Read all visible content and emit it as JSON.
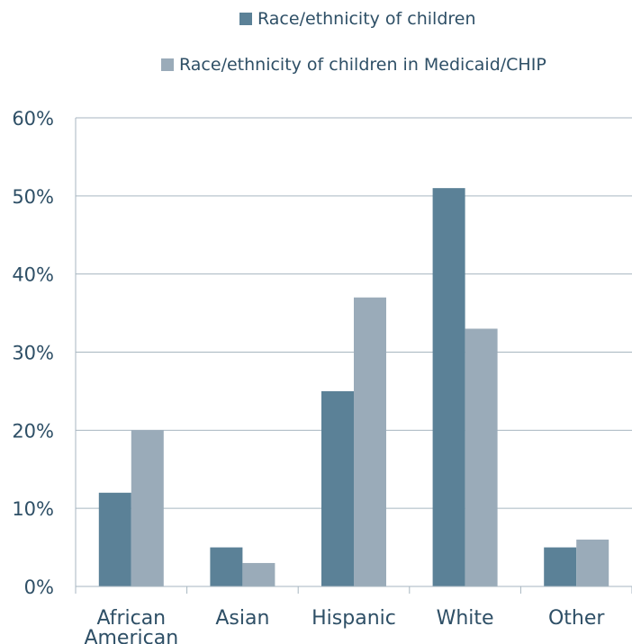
{
  "chart_data": {
    "type": "bar",
    "categories": [
      "African American",
      "Asian",
      "Hispanic",
      "White",
      "Other"
    ],
    "category_labels": [
      [
        "African",
        "American"
      ],
      [
        "Asian"
      ],
      [
        "Hispanic"
      ],
      [
        "White"
      ],
      [
        "Other"
      ]
    ],
    "series": [
      {
        "name": "Race/ethnicity of children",
        "color": "#5b8197",
        "values": [
          12,
          5,
          25,
          51,
          5
        ]
      },
      {
        "name": "Race/ethnicity of children in Medicaid/CHIP",
        "color": "#9aabb9",
        "values": [
          20,
          3,
          37,
          33,
          6
        ]
      }
    ],
    "ylim": [
      0,
      60
    ],
    "yticks": [
      0,
      10,
      20,
      30,
      40,
      50,
      60
    ],
    "ytick_labels": [
      "0%",
      "10%",
      "20%",
      "30%",
      "40%",
      "50%",
      "60%"
    ],
    "grid": true,
    "legend_position": "top",
    "grid_color": "#a7b6c0",
    "axis_text_color": "#2e4f66"
  }
}
